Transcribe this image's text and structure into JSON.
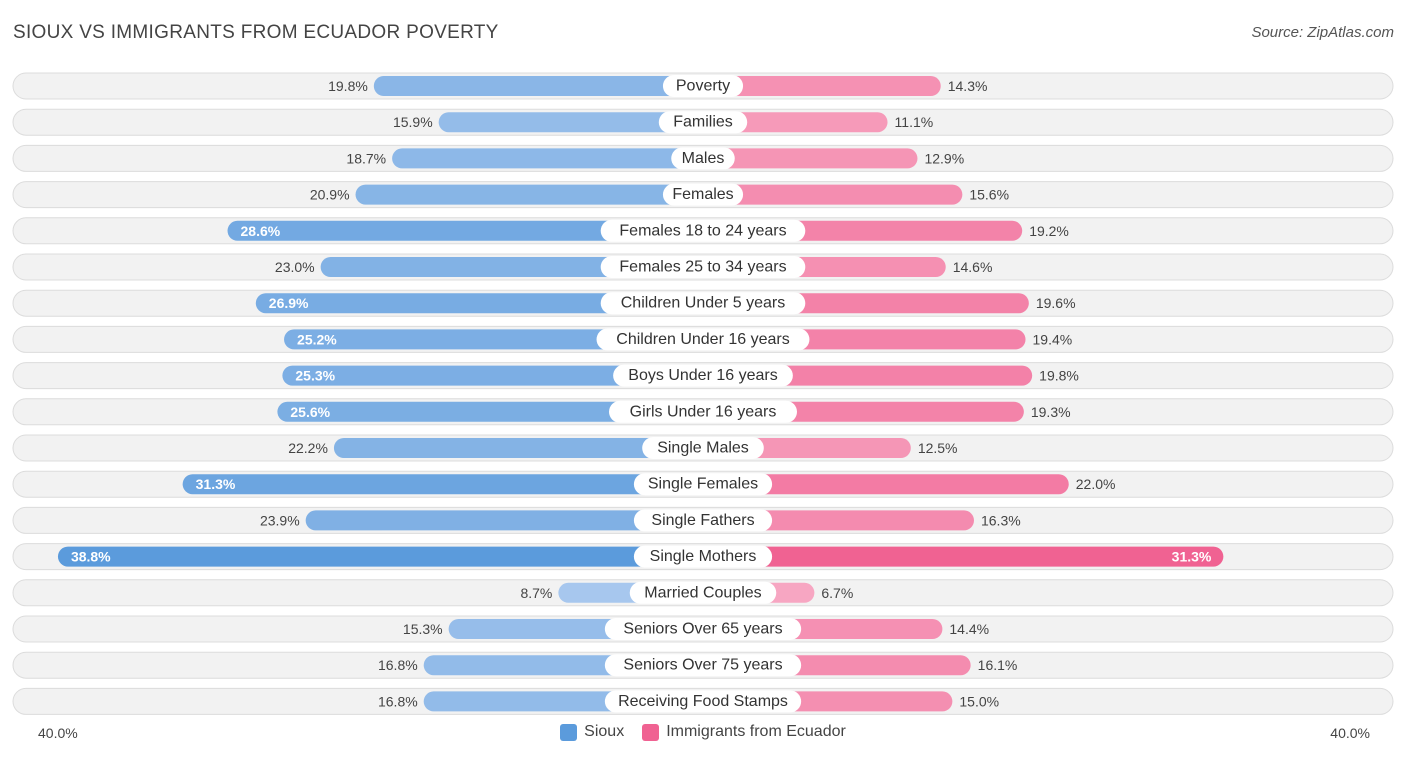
{
  "header": {
    "title": "SIOUX VS IMMIGRANTS FROM ECUADOR POVERTY",
    "source": "Source: ZipAtlas.com"
  },
  "colors": {
    "sioux": "#5b9bdc",
    "sioux_light": "#a9c8ee",
    "ecuador": "#f06292",
    "ecuador_light": "#f7a8c3"
  },
  "chart_data": {
    "type": "bar",
    "orientation": "diverging-horizontal",
    "title": "SIOUX VS IMMIGRANTS FROM ECUADOR POVERTY",
    "xlim": [
      0,
      40
    ],
    "axis_left_label": "40.0%",
    "axis_right_label": "40.0%",
    "categories": [
      "Poverty",
      "Families",
      "Males",
      "Females",
      "Females 18 to 24 years",
      "Females 25 to 34 years",
      "Children Under 5 years",
      "Children Under 16 years",
      "Boys Under 16 years",
      "Girls Under 16 years",
      "Single Males",
      "Single Females",
      "Single Fathers",
      "Single Mothers",
      "Married Couples",
      "Seniors Over 65 years",
      "Seniors Over 75 years",
      "Receiving Food Stamps"
    ],
    "series": [
      {
        "name": "Sioux",
        "values": [
          19.8,
          15.9,
          18.7,
          20.9,
          28.6,
          23.0,
          26.9,
          25.2,
          25.3,
          25.6,
          22.2,
          31.3,
          23.9,
          38.8,
          8.7,
          15.3,
          16.8,
          16.8
        ],
        "labels": [
          "19.8%",
          "15.9%",
          "18.7%",
          "20.9%",
          "28.6%",
          "23.0%",
          "26.9%",
          "25.2%",
          "25.3%",
          "25.6%",
          "22.2%",
          "31.3%",
          "23.9%",
          "38.8%",
          "8.7%",
          "15.3%",
          "16.8%",
          "16.8%"
        ]
      },
      {
        "name": "Immigrants from Ecuador",
        "values": [
          14.3,
          11.1,
          12.9,
          15.6,
          19.2,
          14.6,
          19.6,
          19.4,
          19.8,
          19.3,
          12.5,
          22.0,
          16.3,
          31.3,
          6.7,
          14.4,
          16.1,
          15.0
        ],
        "labels": [
          "14.3%",
          "11.1%",
          "12.9%",
          "15.6%",
          "19.2%",
          "14.6%",
          "19.6%",
          "19.4%",
          "19.8%",
          "19.3%",
          "12.5%",
          "22.0%",
          "16.3%",
          "31.3%",
          "6.7%",
          "14.4%",
          "16.1%",
          "15.0%"
        ]
      }
    ],
    "legend": [
      "Sioux",
      "Immigrants from Ecuador"
    ],
    "legend_position": "bottom-center"
  }
}
